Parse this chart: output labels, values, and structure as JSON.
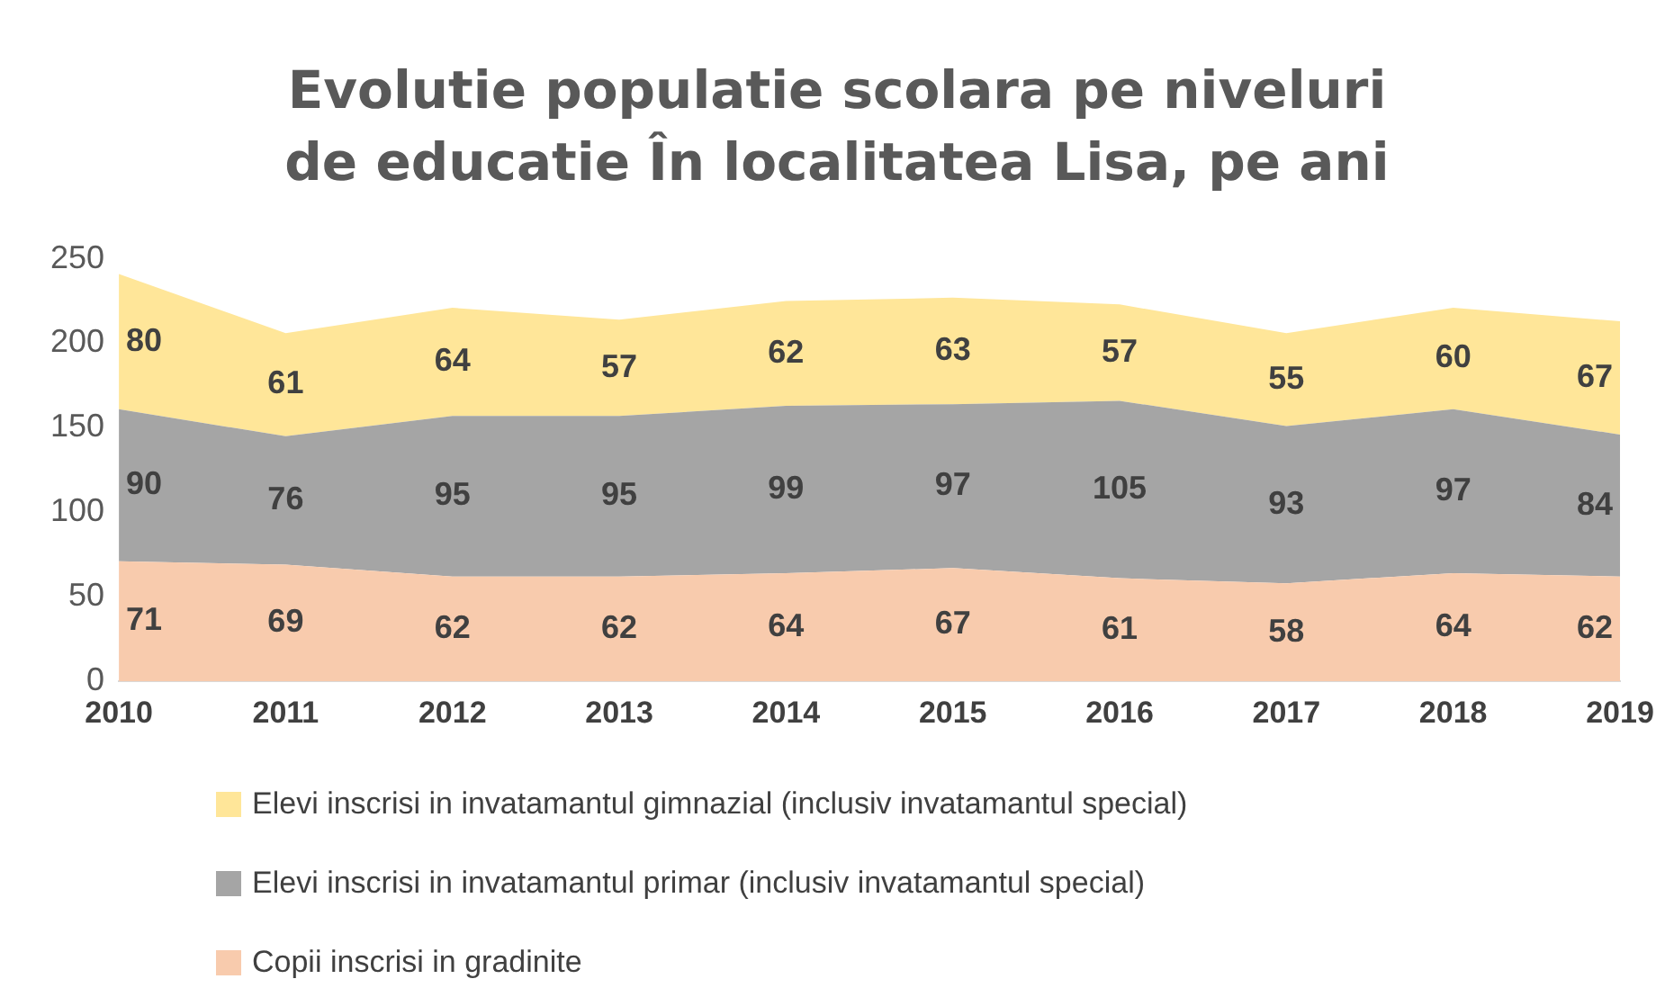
{
  "chart_data": {
    "type": "area",
    "title": "Evolutie populatie scolara pe niveluri de educatie În localitatea Lisa, pe ani",
    "categories": [
      "2010",
      "2011",
      "2012",
      "2013",
      "2014",
      "2015",
      "2016",
      "2017",
      "2018",
      "2019"
    ],
    "stacked": true,
    "ylim": [
      0,
      250
    ],
    "yticks": [
      0,
      50,
      100,
      150,
      200,
      250
    ],
    "grid": false,
    "legend": "bottom",
    "data_labels": true,
    "series": [
      {
        "name": "Copii inscrisi in gradinite",
        "color": "#f8cbad",
        "values": [
          71,
          69,
          62,
          62,
          64,
          67,
          61,
          58,
          64,
          62
        ]
      },
      {
        "name": "Elevi inscrisi in invatamantul primar (inclusiv invatamantul special)",
        "color": "#a5a5a5",
        "values": [
          90,
          76,
          95,
          95,
          99,
          97,
          105,
          93,
          97,
          84
        ]
      },
      {
        "name": "Elevi inscrisi in invatamantul gimnazial (inclusiv invatamantul special)",
        "color": "#ffe699",
        "values": [
          80,
          61,
          64,
          57,
          62,
          63,
          57,
          55,
          60,
          67
        ]
      }
    ]
  }
}
